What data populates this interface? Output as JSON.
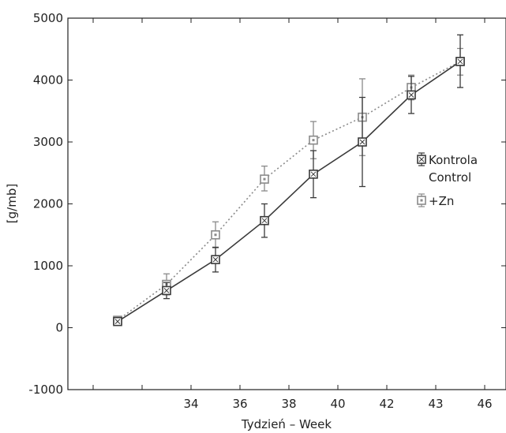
{
  "chart_data": {
    "type": "line",
    "xlabel": "Tydzień – Week",
    "ylabel": "[g/mb]",
    "ylim": [
      -1000,
      5000
    ],
    "yticks": [
      -1000,
      0,
      1000,
      2000,
      3000,
      4000,
      5000
    ],
    "ytick_labels": [
      "-1000",
      "0",
      "1000",
      "2000",
      "3000",
      "4000",
      "5000"
    ],
    "categories": [
      "",
      "34",
      "36",
      "38",
      "40",
      "42",
      "43",
      "46"
    ],
    "grid": false,
    "legend_position": "right",
    "series": [
      {
        "name": "Kontrola Control",
        "name_lines": [
          "Kontrola",
          "Control"
        ],
        "color": "#3a3a3a",
        "line_style": "solid",
        "marker": "square-cross",
        "values": [
          100,
          600,
          1100,
          1730,
          2480,
          3000,
          3760,
          4300
        ],
        "err_low": [
          30,
          130,
          200,
          270,
          380,
          720,
          300,
          420
        ],
        "err_high": [
          30,
          130,
          200,
          270,
          380,
          720,
          300,
          430
        ]
      },
      {
        "name": "+Zn",
        "name_lines": [
          "+Zn"
        ],
        "color": "#8a8a8a",
        "line_style": "dotted",
        "marker": "square-dot",
        "values": [
          120,
          700,
          1500,
          2400,
          3030,
          3400,
          3880,
          4300
        ],
        "err_low": [
          40,
          170,
          210,
          190,
          300,
          620,
          200,
          220
        ],
        "err_high": [
          40,
          170,
          210,
          210,
          300,
          620,
          200,
          210
        ]
      }
    ]
  }
}
